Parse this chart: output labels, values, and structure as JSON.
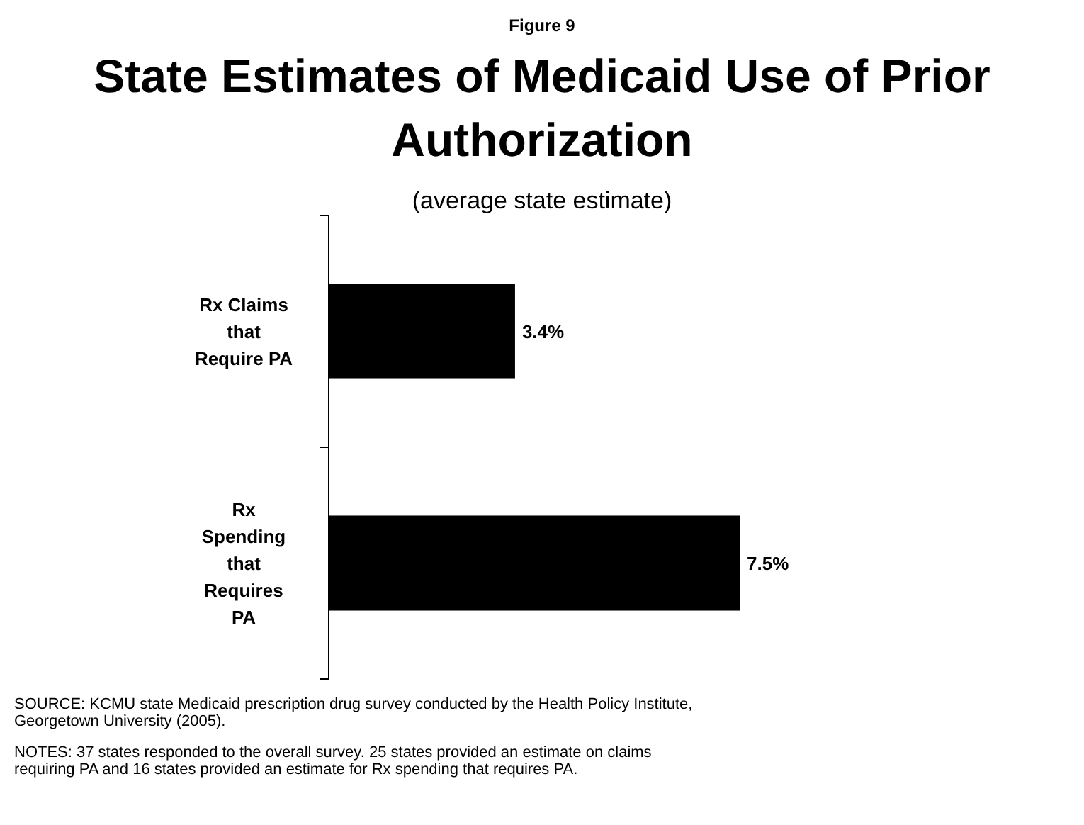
{
  "chart_data": {
    "type": "bar",
    "orientation": "horizontal",
    "title": "State Estimates of Medicaid Use of Prior Authorization",
    "subtitle": "(average state estimate)",
    "categories": [
      "Rx Claims that Require PA",
      "Rx Spending that Requires PA"
    ],
    "values": [
      3.4,
      7.5
    ],
    "value_labels": [
      "3.4%",
      "7.5%"
    ],
    "color": "#000000",
    "annotations": [
      "Figure 9",
      "SOURCE: KCMU state Medicaid prescription drug survey conducted by the Health Policy Institute, Georgetown University (2005).",
      "NOTES: 37 states responded to the overall survey.  25 states provided an estimate on claims requiring PA and 16 states provided an estimate for Rx spending that requires PA."
    ]
  }
}
